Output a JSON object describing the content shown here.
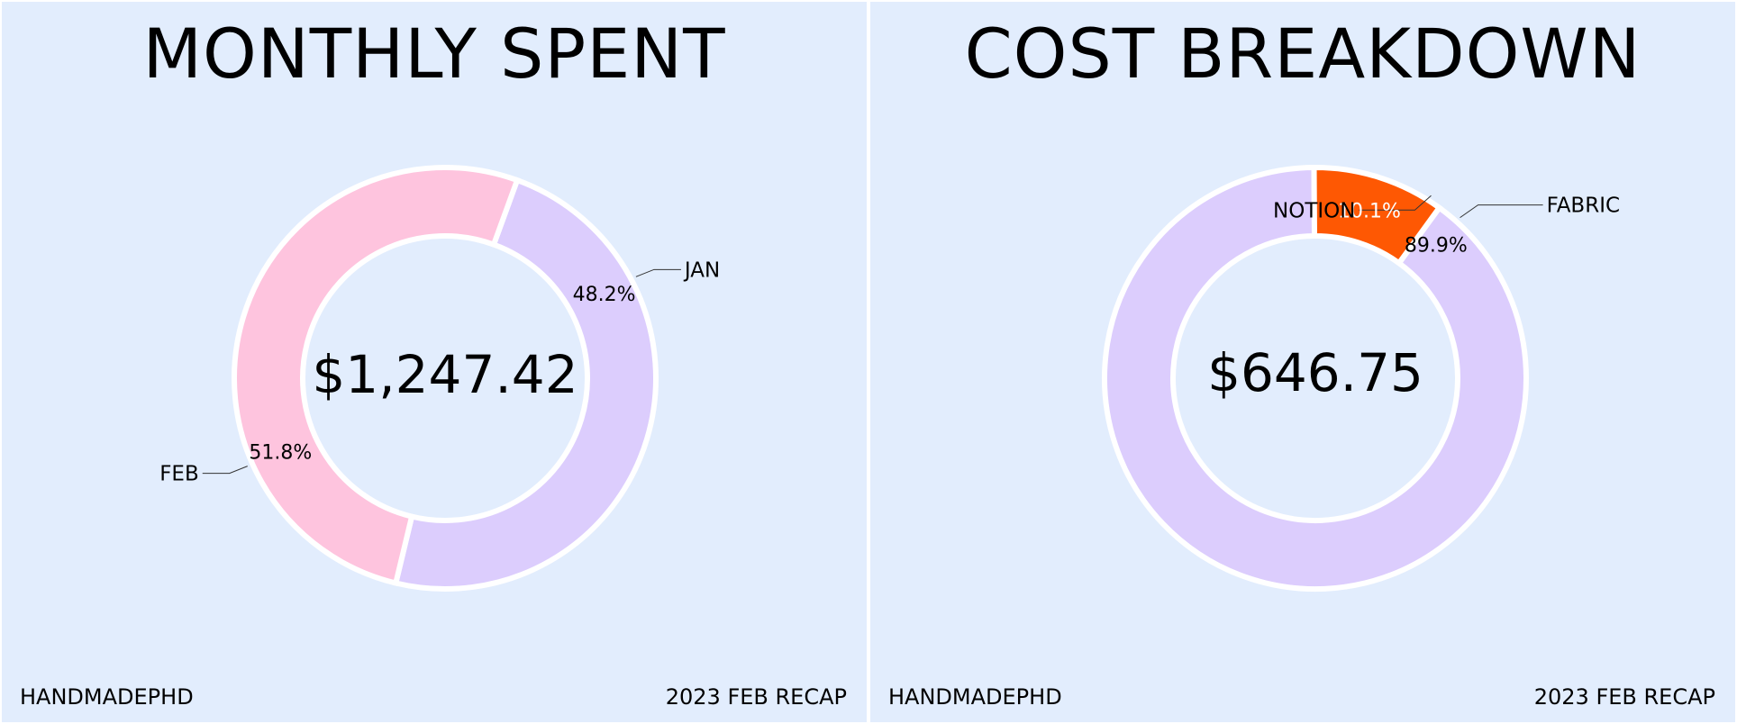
{
  "colors": {
    "background": "#e2edfd",
    "lavender": "#dccdfd",
    "pink": "#fec4de",
    "orange": "#fe5803",
    "text": "#000000",
    "separator": "#ffffff"
  },
  "panels": [
    {
      "title": "MONTHLY SPENT",
      "footer_left": "HANDMADEPHD",
      "footer_right": "2023 FEB RECAP"
    },
    {
      "title": "COST BREAKDOWN",
      "footer_left": "HANDMADEPHD",
      "footer_right": "2023 FEB RECAP"
    }
  ],
  "chart_data": [
    {
      "type": "pie",
      "donut": true,
      "title": "MONTHLY SPENT",
      "center_label": "$1,247.42",
      "slices": [
        {
          "label": "JAN",
          "value": 48.2,
          "value_label": "48.2%",
          "color": "#dccdfd",
          "label_color": "#000000"
        },
        {
          "label": "FEB",
          "value": 51.8,
          "value_label": "51.8%",
          "color": "#fec4de",
          "label_color": "#000000"
        }
      ]
    },
    {
      "type": "pie",
      "donut": true,
      "title": "COST BREAKDOWN",
      "center_label": "$646.75",
      "slices": [
        {
          "label": "FABRIC",
          "value": 89.9,
          "value_label": "89.9%",
          "color": "#dccdfd",
          "label_color": "#000000"
        },
        {
          "label": "NOTION",
          "value": 10.1,
          "value_label": "10.1%",
          "color": "#fe5803",
          "label_color": "#ffffff"
        }
      ]
    }
  ]
}
